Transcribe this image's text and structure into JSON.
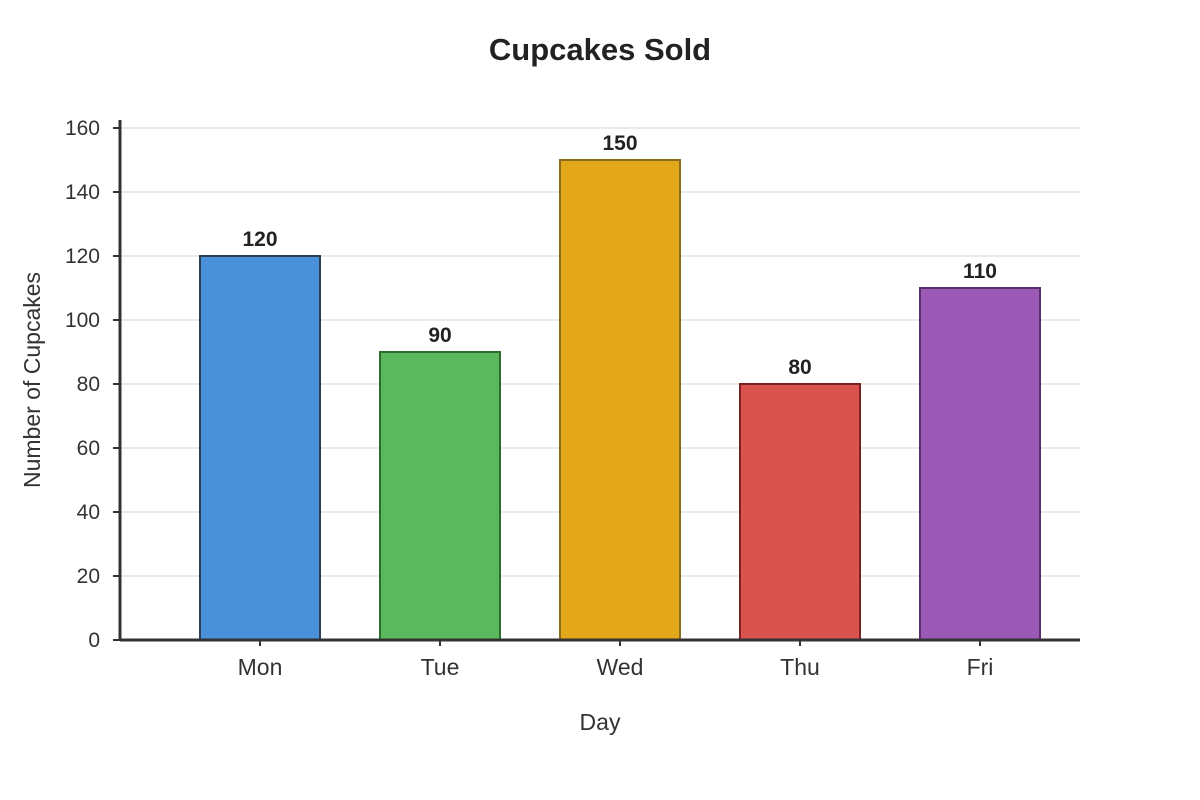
{
  "chart_data": {
    "type": "bar",
    "title": "Cupcakes Sold",
    "xlabel": "Day",
    "ylabel": "Number of Cupcakes",
    "categories": [
      "Mon",
      "Tue",
      "Wed",
      "Thu",
      "Fri"
    ],
    "values": [
      120,
      90,
      150,
      80,
      110
    ],
    "ylim": [
      0,
      160
    ],
    "yticks": [
      0,
      20,
      40,
      60,
      80,
      100,
      120,
      140,
      160
    ],
    "grid": true,
    "data_labels": true,
    "colors": {
      "fill": [
        "#4a90d9",
        "#5cb85c",
        "#e3a71a",
        "#d9534f",
        "#9b59b6"
      ],
      "stroke": [
        "#2c3e50",
        "#2e6b2e",
        "#8a6d1f",
        "#7a2222",
        "#5b2c6f"
      ]
    }
  }
}
